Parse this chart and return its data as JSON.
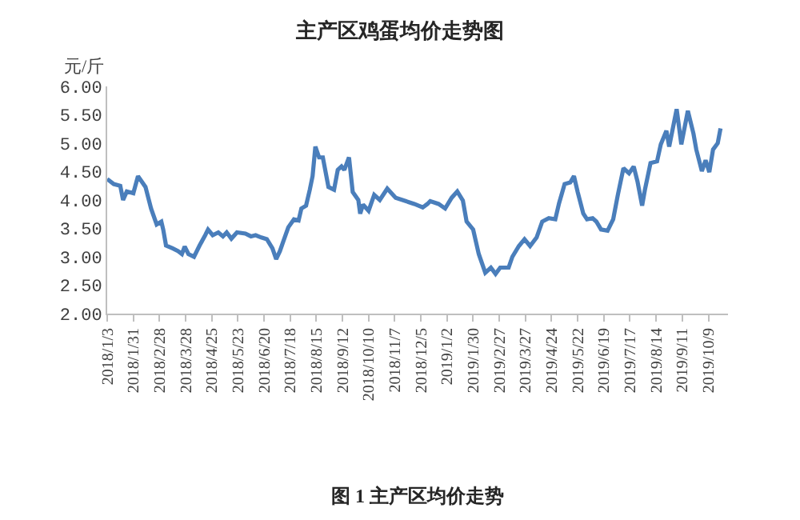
{
  "chart_data": {
    "type": "line",
    "title": "主产区鸡蛋均价走势图",
    "ylabel": "元/斤",
    "annotations": [
      "图 1 主产区均价走势"
    ],
    "x": [
      "2018-01-03",
      "2018-01-10",
      "2018-01-17",
      "2018-01-20",
      "2018-01-24",
      "2018-01-31",
      "2018-02-05",
      "2018-02-13",
      "2018-02-19",
      "2018-02-25",
      "2018-03-02",
      "2018-03-04",
      "2018-03-07",
      "2018-03-14",
      "2018-03-20",
      "2018-03-24",
      "2018-03-27",
      "2018-03-31",
      "2018-04-06",
      "2018-04-12",
      "2018-04-18",
      "2018-04-21",
      "2018-04-26",
      "2018-05-02",
      "2018-05-07",
      "2018-05-11",
      "2018-05-16",
      "2018-05-22",
      "2018-05-31",
      "2018-06-06",
      "2018-06-11",
      "2018-06-17",
      "2018-06-23",
      "2018-06-29",
      "2018-07-03",
      "2018-07-07",
      "2018-07-10",
      "2018-07-16",
      "2018-07-22",
      "2018-07-27",
      "2018-07-30",
      "2018-08-04",
      "2018-08-08",
      "2018-08-11",
      "2018-08-14",
      "2018-08-18",
      "2018-08-22",
      "2018-08-28",
      "2018-09-03",
      "2018-09-07",
      "2018-09-11",
      "2018-09-14",
      "2018-09-19",
      "2018-09-23",
      "2018-09-29",
      "2018-10-01",
      "2018-10-04",
      "2018-10-10",
      "2018-10-16",
      "2018-10-22",
      "2018-10-30",
      "2018-11-08",
      "2018-11-28",
      "2018-12-07",
      "2018-12-12",
      "2018-12-15",
      "2018-12-24",
      "2018-12-31",
      "2019-01-07",
      "2019-01-13",
      "2019-01-19",
      "2019-01-23",
      "2019-01-30",
      "2019-02-05",
      "2019-02-12",
      "2019-02-18",
      "2019-02-23",
      "2019-02-28",
      "2019-03-09",
      "2019-03-13",
      "2019-03-20",
      "2019-03-26",
      "2019-04-01",
      "2019-04-08",
      "2019-04-14",
      "2019-04-21",
      "2019-04-28",
      "2019-05-02",
      "2019-05-08",
      "2019-05-14",
      "2019-05-18",
      "2019-05-22",
      "2019-05-28",
      "2019-06-01",
      "2019-06-07",
      "2019-06-11",
      "2019-06-16",
      "2019-06-23",
      "2019-06-29",
      "2019-07-04",
      "2019-07-10",
      "2019-07-16",
      "2019-07-21",
      "2019-07-25",
      "2019-07-30",
      "2019-08-02",
      "2019-08-08",
      "2019-08-15",
      "2019-08-19",
      "2019-08-25",
      "2019-08-28",
      "2019-09-05",
      "2019-09-10",
      "2019-09-17",
      "2019-09-23",
      "2019-09-26",
      "2019-10-02",
      "2019-10-06",
      "2019-10-10",
      "2019-10-14",
      "2019-10-19",
      "2019-10-22"
    ],
    "series": [
      {
        "color": "#4a7ebb",
        "values": [
          4.37,
          4.28,
          4.25,
          4.0,
          4.15,
          4.12,
          4.42,
          4.23,
          3.85,
          3.57,
          3.62,
          3.48,
          3.2,
          3.15,
          3.1,
          3.05,
          3.18,
          3.05,
          3.0,
          3.2,
          3.38,
          3.48,
          3.38,
          3.43,
          3.36,
          3.43,
          3.32,
          3.43,
          3.41,
          3.36,
          3.38,
          3.34,
          3.31,
          3.15,
          2.96,
          3.1,
          3.24,
          3.52,
          3.66,
          3.64,
          3.85,
          3.9,
          4.18,
          4.42,
          4.94,
          4.75,
          4.75,
          4.23,
          4.18,
          4.53,
          4.59,
          4.53,
          4.75,
          4.14,
          4.0,
          3.76,
          3.92,
          3.81,
          4.09,
          4.0,
          4.2,
          4.04,
          3.93,
          3.87,
          3.93,
          3.98,
          3.93,
          3.85,
          4.04,
          4.15,
          3.99,
          3.62,
          3.48,
          3.05,
          2.72,
          2.81,
          2.7,
          2.81,
          2.81,
          3.0,
          3.19,
          3.31,
          3.19,
          3.34,
          3.62,
          3.68,
          3.66,
          3.94,
          4.28,
          4.31,
          4.42,
          4.14,
          3.76,
          3.66,
          3.68,
          3.62,
          3.48,
          3.46,
          3.66,
          4.09,
          4.56,
          4.47,
          4.59,
          4.33,
          3.9,
          4.18,
          4.65,
          4.68,
          4.98,
          5.22,
          4.94,
          5.6,
          4.98,
          5.57,
          5.17,
          4.89,
          4.51,
          4.7,
          4.49,
          4.89,
          5.0,
          5.26
        ]
      }
    ],
    "xlim": [
      "2018-01-03",
      "2019-10-30"
    ],
    "xticks": [
      {
        "value": "2018-01-03",
        "label": "2018/1/3"
      },
      {
        "value": "2018-01-31",
        "label": "2018/1/31"
      },
      {
        "value": "2018-02-28",
        "label": "2018/2/28"
      },
      {
        "value": "2018-03-28",
        "label": "2018/3/28"
      },
      {
        "value": "2018-04-25",
        "label": "2018/4/25"
      },
      {
        "value": "2018-05-23",
        "label": "2018/5/23"
      },
      {
        "value": "2018-06-20",
        "label": "2018/6/20"
      },
      {
        "value": "2018-07-18",
        "label": "2018/7/18"
      },
      {
        "value": "2018-08-15",
        "label": "2018/8/15"
      },
      {
        "value": "2018-09-12",
        "label": "2018/9/12"
      },
      {
        "value": "2018-10-10",
        "label": "2018/10/10"
      },
      {
        "value": "2018-11-07",
        "label": "2018/11/7"
      },
      {
        "value": "2018-12-05",
        "label": "2018/12/5"
      },
      {
        "value": "2019-01-02",
        "label": "2019/1/2"
      },
      {
        "value": "2019-01-30",
        "label": "2019/1/30"
      },
      {
        "value": "2019-02-27",
        "label": "2019/2/27"
      },
      {
        "value": "2019-03-27",
        "label": "2019/3/27"
      },
      {
        "value": "2019-04-24",
        "label": "2019/4/24"
      },
      {
        "value": "2019-05-22",
        "label": "2019/5/22"
      },
      {
        "value": "2019-06-19",
        "label": "2019/6/19"
      },
      {
        "value": "2019-07-17",
        "label": "2019/7/17"
      },
      {
        "value": "2019-08-14",
        "label": "2019/8/14"
      },
      {
        "value": "2019-09-11",
        "label": "2019/9/11"
      },
      {
        "value": "2019-10-09",
        "label": "2019/10/9"
      }
    ],
    "ylim": [
      2.0,
      6.0
    ],
    "yticks": [
      {
        "value": 2.0,
        "label": "2.00"
      },
      {
        "value": 2.5,
        "label": "2.50"
      },
      {
        "value": 3.0,
        "label": "3.00"
      },
      {
        "value": 3.5,
        "label": "3.50"
      },
      {
        "value": 4.0,
        "label": "4.00"
      },
      {
        "value": 4.5,
        "label": "4.50"
      },
      {
        "value": 5.0,
        "label": "5.00"
      },
      {
        "value": 5.5,
        "label": "5.50"
      },
      {
        "value": 6.0,
        "label": "6.00"
      }
    ],
    "grid": false,
    "marker": "none",
    "line_style": "solid"
  }
}
